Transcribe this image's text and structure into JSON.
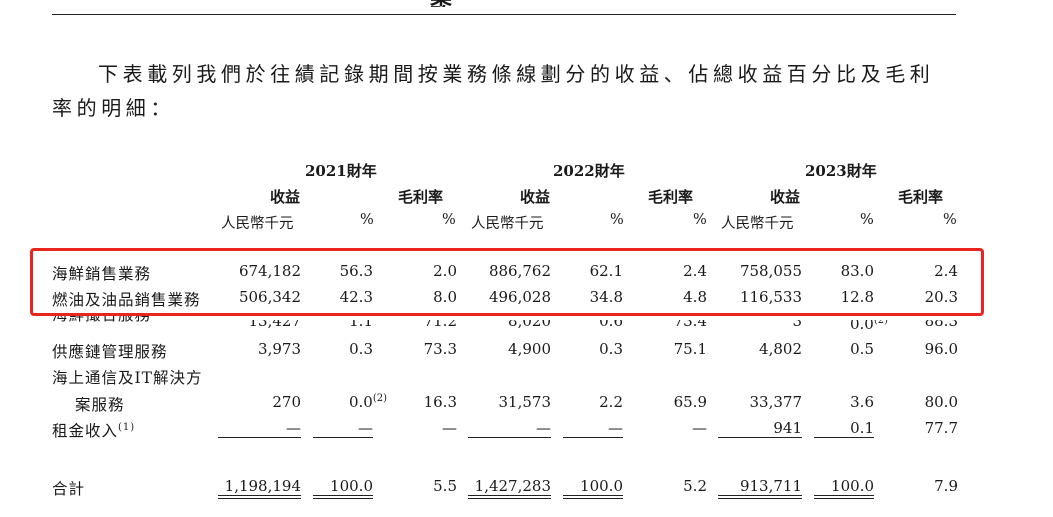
{
  "section_heading": "業務",
  "intro_line1": "下表載列我們於往績記錄期間按業務條線劃分的收益、佔總收益百分比及毛利",
  "intro_line2": "率的明細：",
  "years": [
    {
      "label": "2021財年"
    },
    {
      "label": "2022財年"
    },
    {
      "label": "2023財年"
    }
  ],
  "col_headers": {
    "revenue": "收益",
    "gross_margin": "毛利率",
    "rmb": "人民幣千元",
    "pct": "%"
  },
  "rows": [
    {
      "label": "海鮮銷售業務",
      "cells": [
        "674,182",
        "56.3",
        "2.0",
        "886,762",
        "62.1",
        "2.4",
        "758,055",
        "83.0",
        "2.4"
      ]
    },
    {
      "label": "燃油及油品銷售業務",
      "cells": [
        "506,342",
        "42.3",
        "8.0",
        "496,028",
        "34.8",
        "4.8",
        "116,533",
        "12.8",
        "20.3"
      ]
    },
    {
      "label": "海鮮撮合服務",
      "cells": [
        "13,427",
        "1.1",
        "71.2",
        "8,020",
        "0.6",
        "73.4",
        "3",
        "0.0",
        "88.3"
      ],
      "note_index": 7,
      "note": "(2)"
    },
    {
      "label": "供應鏈管理服務",
      "cells": [
        "3,973",
        "0.3",
        "73.3",
        "4,900",
        "0.3",
        "75.1",
        "4,802",
        "0.5",
        "96.0"
      ]
    },
    {
      "label": "海上通信及IT解決方",
      "label2": "案服務",
      "cells": [
        "270",
        "0.0",
        "16.3",
        "31,573",
        "2.2",
        "65.9",
        "33,377",
        "3.6",
        "80.0"
      ],
      "note_index": 1,
      "note": "(2)"
    },
    {
      "label": "租金收入",
      "label_note": "(1)",
      "cells": [
        "—",
        "—",
        "—",
        "—",
        "—",
        "—",
        "941",
        "0.1",
        "77.7"
      ]
    }
  ],
  "total": {
    "label": "合計",
    "cells": [
      "1,198,194",
      "100.0",
      "5.5",
      "1,427,283",
      "100.0",
      "5.2",
      "913,711",
      "100.0",
      "7.9"
    ]
  },
  "highlight_color": "#e8251f"
}
